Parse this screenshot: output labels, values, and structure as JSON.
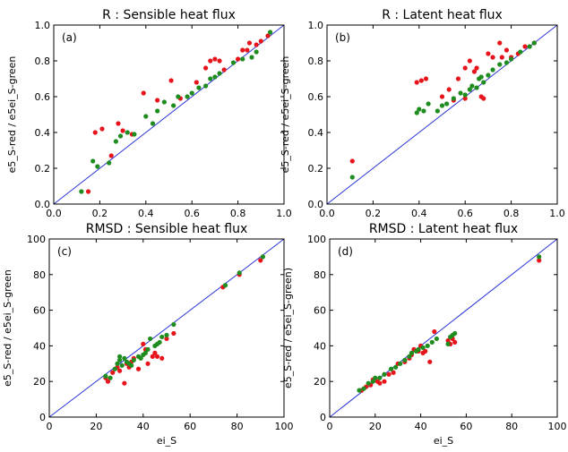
{
  "chart_data": [
    {
      "type": "scatter",
      "title": "R : Sensible heat flux",
      "panel_label": "(a)",
      "xlabel": "",
      "ylabel": "e5_S-red / e5ei_S-green",
      "xlim": [
        0.0,
        1.0
      ],
      "ylim": [
        0.0,
        1.0
      ],
      "xticks": [
        "0.0",
        "0.2",
        "0.4",
        "0.6",
        "0.8",
        "1.0"
      ],
      "yticks": [
        "0.0",
        "0.2",
        "0.4",
        "0.6",
        "0.8",
        "1.0"
      ],
      "reference_line": "1:1",
      "colors": {
        "e5_S": "#e8141c",
        "e5ei_S": "#1e8c1e",
        "line": "#2a35d6"
      },
      "series": [
        {
          "color": "red",
          "x": [
            0.15,
            0.18,
            0.21,
            0.25,
            0.28,
            0.3,
            0.34,
            0.39,
            0.45,
            0.51,
            0.55,
            0.62,
            0.66,
            0.68,
            0.7,
            0.72,
            0.74,
            0.8,
            0.82,
            0.84,
            0.85,
            0.88,
            0.9,
            0.93
          ],
          "y": [
            0.07,
            0.4,
            0.42,
            0.27,
            0.45,
            0.41,
            0.39,
            0.62,
            0.58,
            0.69,
            0.59,
            0.68,
            0.76,
            0.8,
            0.81,
            0.8,
            0.75,
            0.81,
            0.86,
            0.86,
            0.9,
            0.89,
            0.91,
            0.94
          ]
        },
        {
          "color": "green",
          "x": [
            0.12,
            0.17,
            0.19,
            0.24,
            0.27,
            0.29,
            0.32,
            0.35,
            0.4,
            0.43,
            0.45,
            0.48,
            0.52,
            0.54,
            0.58,
            0.6,
            0.63,
            0.66,
            0.68,
            0.7,
            0.72,
            0.78,
            0.82,
            0.86,
            0.88,
            0.94
          ],
          "y": [
            0.07,
            0.24,
            0.21,
            0.23,
            0.35,
            0.38,
            0.4,
            0.39,
            0.49,
            0.45,
            0.52,
            0.57,
            0.55,
            0.6,
            0.6,
            0.62,
            0.65,
            0.66,
            0.7,
            0.71,
            0.73,
            0.79,
            0.81,
            0.82,
            0.85,
            0.96
          ]
        }
      ]
    },
    {
      "type": "scatter",
      "title": "R : Latent heat flux",
      "panel_label": "(b)",
      "xlabel": "",
      "ylabel": "e5_S-red / e5ei_S-green",
      "xlim": [
        0.0,
        1.0
      ],
      "ylim": [
        0.0,
        1.0
      ],
      "xticks": [
        "0.0",
        "0.2",
        "0.4",
        "0.6",
        "0.8",
        "1.0"
      ],
      "yticks": [
        "0.0",
        "0.2",
        "0.4",
        "0.6",
        "0.8",
        "1.0"
      ],
      "reference_line": "1:1",
      "colors": {
        "e5_S": "#e8141c",
        "e5ei_S": "#1e8c1e",
        "line": "#2a35d6"
      },
      "series": [
        {
          "color": "red",
          "x": [
            0.11,
            0.39,
            0.41,
            0.43,
            0.5,
            0.53,
            0.55,
            0.57,
            0.6,
            0.6,
            0.62,
            0.64,
            0.65,
            0.67,
            0.68,
            0.7,
            0.72,
            0.75,
            0.76,
            0.78,
            0.8,
            0.83,
            0.86,
            0.9
          ],
          "y": [
            0.24,
            0.68,
            0.69,
            0.7,
            0.6,
            0.64,
            0.58,
            0.7,
            0.59,
            0.76,
            0.8,
            0.74,
            0.76,
            0.6,
            0.59,
            0.84,
            0.82,
            0.9,
            0.82,
            0.86,
            0.82,
            0.84,
            0.88,
            0.9
          ]
        },
        {
          "color": "green",
          "x": [
            0.11,
            0.39,
            0.4,
            0.42,
            0.44,
            0.48,
            0.5,
            0.52,
            0.55,
            0.58,
            0.6,
            0.62,
            0.63,
            0.65,
            0.66,
            0.67,
            0.68,
            0.7,
            0.72,
            0.75,
            0.78,
            0.8,
            0.84,
            0.88,
            0.9
          ],
          "y": [
            0.15,
            0.51,
            0.53,
            0.52,
            0.56,
            0.52,
            0.55,
            0.56,
            0.59,
            0.62,
            0.61,
            0.64,
            0.66,
            0.65,
            0.7,
            0.71,
            0.68,
            0.72,
            0.75,
            0.78,
            0.79,
            0.81,
            0.85,
            0.88,
            0.9
          ]
        }
      ]
    },
    {
      "type": "scatter",
      "title": "RMSD : Sensible heat flux",
      "panel_label": "(c)",
      "xlabel": "ei_S",
      "ylabel": "e5_S-red / e5ei_S-green",
      "xlim": [
        0,
        100
      ],
      "ylim": [
        0,
        100
      ],
      "xticks": [
        "0",
        "20",
        "40",
        "60",
        "80",
        "100"
      ],
      "yticks": [
        "0",
        "20",
        "40",
        "60",
        "80",
        "100"
      ],
      "reference_line": "1:1",
      "colors": {
        "e5_S": "#e8141c",
        "e5ei_S": "#1e8c1e",
        "line": "#2a35d6"
      },
      "series": [
        {
          "color": "red",
          "x": [
            24,
            25,
            27,
            29,
            30,
            32,
            33,
            34,
            35,
            36,
            38,
            40,
            41,
            42,
            44,
            45,
            46,
            48,
            50,
            53,
            74,
            81,
            90
          ],
          "y": [
            22,
            20,
            25,
            28,
            26,
            19,
            30,
            28,
            31,
            33,
            27,
            41,
            38,
            30,
            34,
            36,
            34,
            33,
            44,
            47,
            73,
            80,
            88
          ]
        },
        {
          "color": "green",
          "x": [
            24,
            26,
            28,
            29,
            30,
            30,
            31,
            32,
            33,
            34,
            35,
            36,
            38,
            39,
            40,
            41,
            42,
            43,
            45,
            46,
            47,
            48,
            50,
            53,
            75,
            81,
            91
          ],
          "y": [
            23,
            22,
            27,
            30,
            32,
            34,
            29,
            33,
            31,
            30,
            29,
            32,
            34,
            33,
            35,
            36,
            38,
            44,
            40,
            41,
            42,
            45,
            46,
            52,
            74,
            81,
            90
          ]
        }
      ]
    },
    {
      "type": "scatter",
      "title": "RMSD : Latent heat flux",
      "panel_label": "(d)",
      "xlabel": "ei_S",
      "ylabel": "e5_S-red / e5ei_S-green)",
      "xlim": [
        0,
        100
      ],
      "ylim": [
        0,
        100
      ],
      "xticks": [
        "0",
        "20",
        "40",
        "60",
        "80",
        "100"
      ],
      "yticks": [
        "0",
        "20",
        "40",
        "60",
        "80",
        "100"
      ],
      "reference_line": "1:1",
      "colors": {
        "e5_S": "#e8141c",
        "e5ei_S": "#1e8c1e",
        "line": "#2a35d6"
      },
      "series": [
        {
          "color": "red",
          "x": [
            14,
            16,
            18,
            19,
            21,
            22,
            24,
            26,
            28,
            30,
            33,
            35,
            36,
            37,
            39,
            40,
            41,
            42,
            44,
            46,
            52,
            53,
            54,
            55,
            92
          ],
          "y": [
            15,
            17,
            18,
            21,
            20,
            19,
            20,
            24,
            25,
            30,
            31,
            33,
            35,
            38,
            37,
            40,
            36,
            37,
            31,
            48,
            43,
            41,
            44,
            42,
            88
          ]
        },
        {
          "color": "green",
          "x": [
            13,
            15,
            17,
            19,
            20,
            22,
            24,
            27,
            29,
            31,
            33,
            35,
            36,
            38,
            39,
            41,
            43,
            45,
            47,
            52,
            53,
            54,
            55,
            92
          ],
          "y": [
            15,
            16,
            19,
            20,
            22,
            22,
            24,
            27,
            28,
            30,
            32,
            34,
            36,
            37,
            38,
            39,
            40,
            42,
            44,
            41,
            45,
            46,
            47,
            90
          ]
        }
      ]
    }
  ]
}
